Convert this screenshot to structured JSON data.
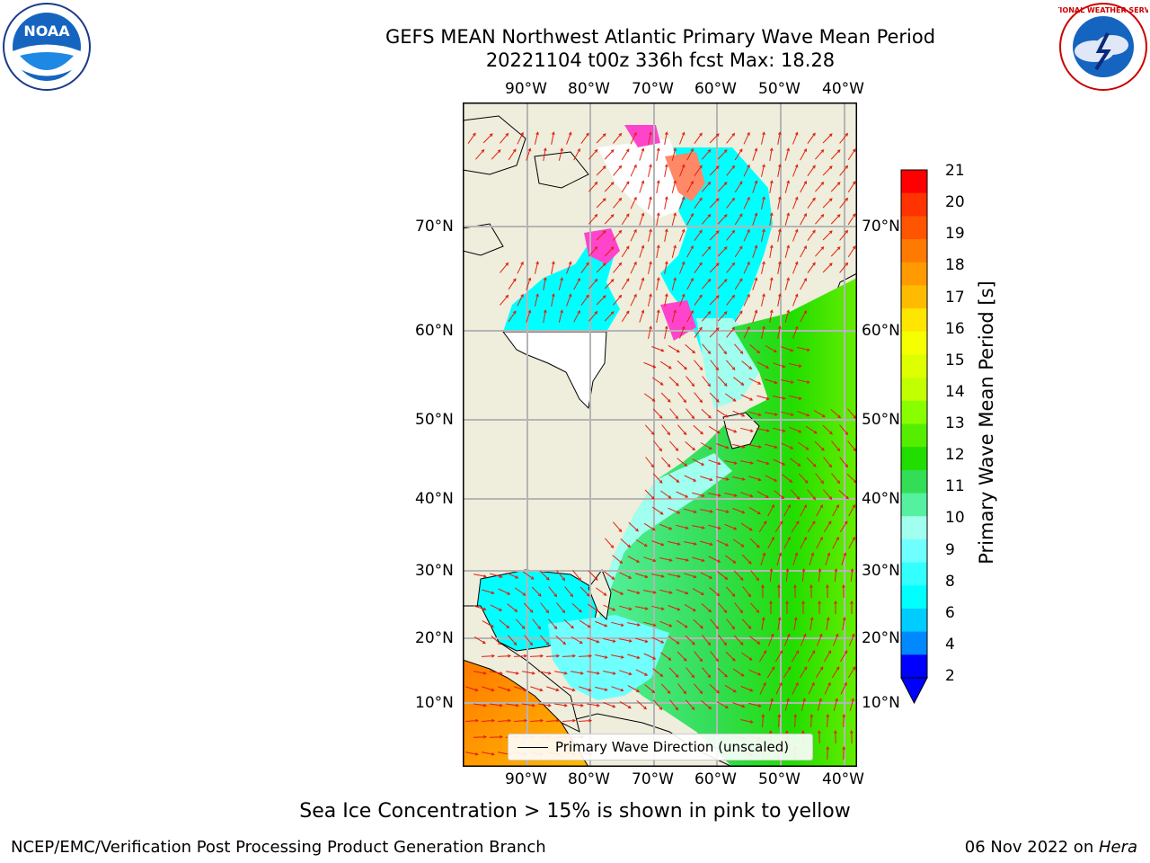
{
  "header": {
    "title_line1": "GEFS MEAN Northwest Atlantic Primary Wave Mean Period",
    "title_line2": "20221104 t00z 336h fcst   Max: 18.28"
  },
  "logos": {
    "left": {
      "icon": "noaa-logo",
      "text": "NOAA"
    },
    "right": {
      "icon": "nws-logo",
      "text": "NATIONAL WEATHER SERVICE"
    }
  },
  "map": {
    "lon_labels": [
      "90°W",
      "80°W",
      "70°W",
      "60°W",
      "50°W",
      "40°W"
    ],
    "lat_labels": [
      "70°N",
      "60°N",
      "50°N",
      "40°N",
      "30°N",
      "20°N",
      "10°N"
    ],
    "legend_label": "Primary Wave Direction (unscaled)",
    "colors": {
      "land": "#efeddc",
      "ice_free_white": "#ffffff",
      "arrow": "#e02010",
      "coast": "#000000",
      "grid": "#b5b5b5"
    }
  },
  "colorbar": {
    "label": "Primary Wave Mean Period [s]",
    "ticks": [
      "21",
      "20",
      "19",
      "18",
      "17",
      "16",
      "15",
      "14",
      "13",
      "12",
      "11",
      "10",
      "9",
      "8",
      "6",
      "4",
      "2"
    ],
    "colors_top_to_bottom": [
      "#ff0000",
      "#ff3300",
      "#ff5500",
      "#ff7a00",
      "#ff9a00",
      "#ffbb00",
      "#ffe600",
      "#f5ff00",
      "#ddff00",
      "#c2ff00",
      "#88ff00",
      "#55ee00",
      "#22dd00",
      "#33dd55",
      "#55f0a0",
      "#a0ffee",
      "#70ffff",
      "#33ffff",
      "#00ffff",
      "#00ccff",
      "#0088ff",
      "#0000ff"
    ]
  },
  "subtitle": "Sea Ice Concentration > 15% is shown in pink to yellow",
  "footer": {
    "left": "NCEP/EMC/Verification Post Processing Product Generation Branch",
    "right_date": "06 Nov 2022 on ",
    "right_machine": "Hera"
  }
}
